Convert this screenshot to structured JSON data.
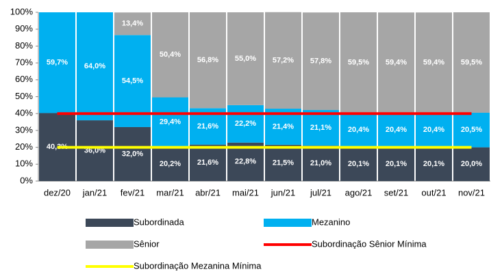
{
  "chart_data": {
    "type": "bar",
    "stacked": true,
    "categories": [
      "dez/20",
      "jan/21",
      "fev/21",
      "mar/21",
      "abr/21",
      "mai/21",
      "jun/21",
      "jul/21",
      "ago/21",
      "set/21",
      "out/21",
      "nov/21"
    ],
    "series": [
      {
        "name": "Subordinada",
        "type": "bar",
        "color": "#3c4858",
        "values": [
          40.3,
          36.0,
          32.0,
          20.2,
          21.6,
          22.8,
          21.5,
          21.0,
          20.1,
          20.1,
          20.1,
          20.0
        ],
        "value_labels": [
          "40,3%",
          "36,0%",
          "32,0%",
          "20,2%",
          "21,6%",
          "22,8%",
          "21,5%",
          "21,0%",
          "20,1%",
          "20,1%",
          "20,1%",
          "20,0%"
        ]
      },
      {
        "name": "Mezanino",
        "type": "bar",
        "color": "#00b0f0",
        "values": [
          59.7,
          64.0,
          54.5,
          29.4,
          21.6,
          22.2,
          21.4,
          21.1,
          20.4,
          20.4,
          20.4,
          20.5
        ],
        "value_labels": [
          "59,7%",
          "64,0%",
          "54,5%",
          "29,4%",
          "21,6%",
          "22,2%",
          "21,4%",
          "21,1%",
          "20,4%",
          "20,4%",
          "20,4%",
          "20,5%"
        ]
      },
      {
        "name": "Sênior",
        "type": "bar",
        "color": "#a6a6a6",
        "values": [
          0,
          0,
          13.4,
          50.4,
          56.8,
          55.0,
          57.2,
          57.8,
          59.5,
          59.4,
          59.4,
          59.5
        ],
        "value_labels": [
          null,
          null,
          "13,4%",
          "50,4%",
          "56,8%",
          "55,0%",
          "57,2%",
          "57,8%",
          "59,5%",
          "59,4%",
          "59,4%",
          "59,5%"
        ]
      },
      {
        "name": "Subordinação Sênior Mínima",
        "type": "line",
        "color": "#ff0000",
        "values": [
          40,
          40,
          40,
          40,
          40,
          40,
          40,
          40,
          40,
          40,
          40,
          40
        ]
      },
      {
        "name": "Subordinação Mezanina Mínima",
        "type": "line",
        "color": "#ffff00",
        "values": [
          20,
          20,
          20,
          20,
          20,
          20,
          20,
          20,
          20,
          20,
          20,
          20
        ]
      }
    ],
    "ylim": [
      0,
      100
    ],
    "yticks": [
      {
        "value": 0,
        "label": "0%"
      },
      {
        "value": 10,
        "label": "10%"
      },
      {
        "value": 20,
        "label": "20%"
      },
      {
        "value": 30,
        "label": "30%"
      },
      {
        "value": 40,
        "label": "40%"
      },
      {
        "value": 50,
        "label": "50%"
      },
      {
        "value": 60,
        "label": "60%"
      },
      {
        "value": 70,
        "label": "70%"
      },
      {
        "value": 80,
        "label": "80%"
      },
      {
        "value": 90,
        "label": "90%"
      },
      {
        "value": 100,
        "label": "100%"
      }
    ],
    "grid": false
  }
}
